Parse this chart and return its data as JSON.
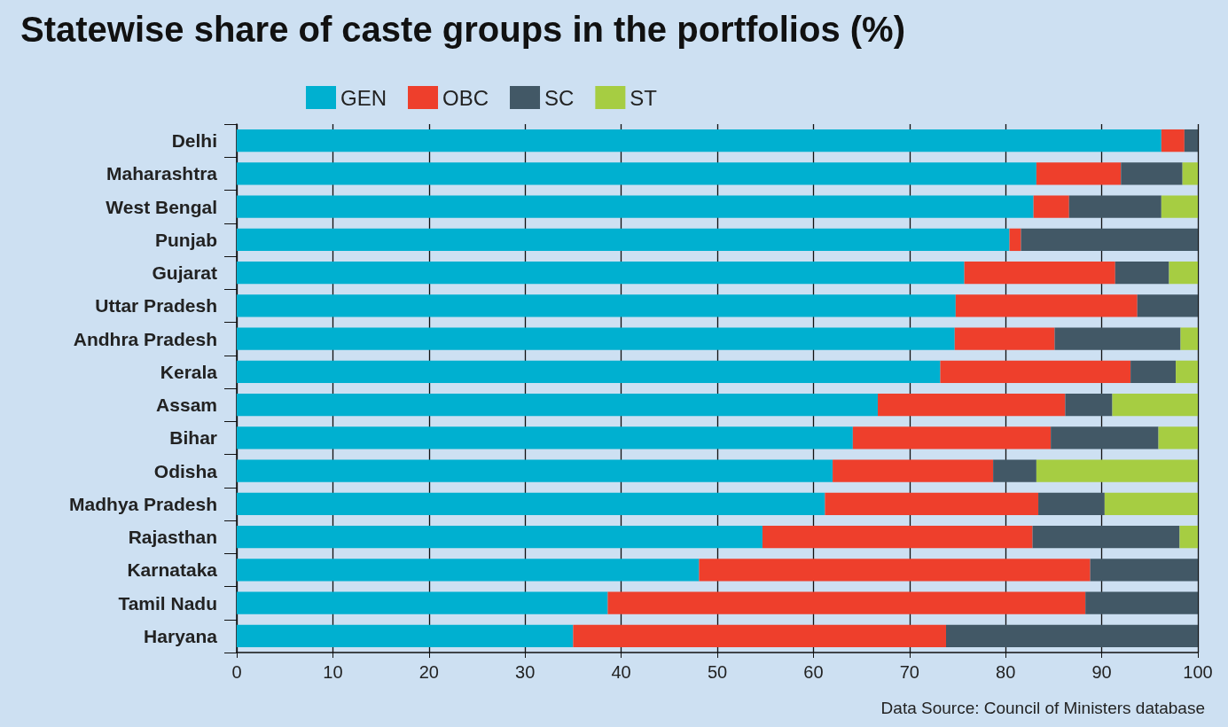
{
  "chart_data": {
    "type": "bar",
    "orientation": "horizontal",
    "stacked": true,
    "title": "Statewise share of caste groups in the portfolios (%)",
    "categories": [
      "Delhi",
      "Maharashtra",
      "West Bengal",
      "Punjab",
      "Gujarat",
      "Uttar Pradesh",
      "Andhra Pradesh",
      "Kerala",
      "Assam",
      "Bihar",
      "Odisha",
      "Madhya Pradesh",
      "Rajasthan",
      "Karnataka",
      "Tamil Nadu",
      "Haryana"
    ],
    "series": [
      {
        "name": "GEN",
        "color": "#00b0d0",
        "values": [
          96.2,
          83.2,
          82.9,
          80.4,
          75.7,
          74.8,
          74.7,
          73.2,
          66.7,
          64.1,
          62.0,
          61.2,
          54.7,
          48.1,
          38.6,
          35.0
        ]
      },
      {
        "name": "OBC",
        "color": "#ee3f2c",
        "values": [
          2.4,
          8.8,
          3.7,
          1.2,
          15.7,
          18.9,
          10.4,
          19.8,
          19.5,
          20.6,
          16.7,
          22.2,
          28.1,
          40.7,
          49.7,
          38.8
        ]
      },
      {
        "name": "SC",
        "color": "#425866",
        "values": [
          1.4,
          6.4,
          9.6,
          18.4,
          5.6,
          6.3,
          13.1,
          4.7,
          4.9,
          11.2,
          4.5,
          6.9,
          15.3,
          11.2,
          11.7,
          26.2
        ]
      },
      {
        "name": "ST",
        "color": "#a6cd42",
        "values": [
          0,
          1.6,
          3.8,
          0,
          3.0,
          0,
          1.8,
          2.3,
          8.9,
          4.1,
          16.8,
          9.7,
          1.9,
          0,
          0,
          0
        ]
      }
    ],
    "xlim": [
      0,
      100
    ],
    "xticks": [
      0,
      10,
      20,
      30,
      40,
      50,
      60,
      70,
      80,
      90,
      100
    ],
    "grid": "x",
    "legend": "top",
    "annotations": [
      "Data Source: Council of Ministers database"
    ]
  }
}
